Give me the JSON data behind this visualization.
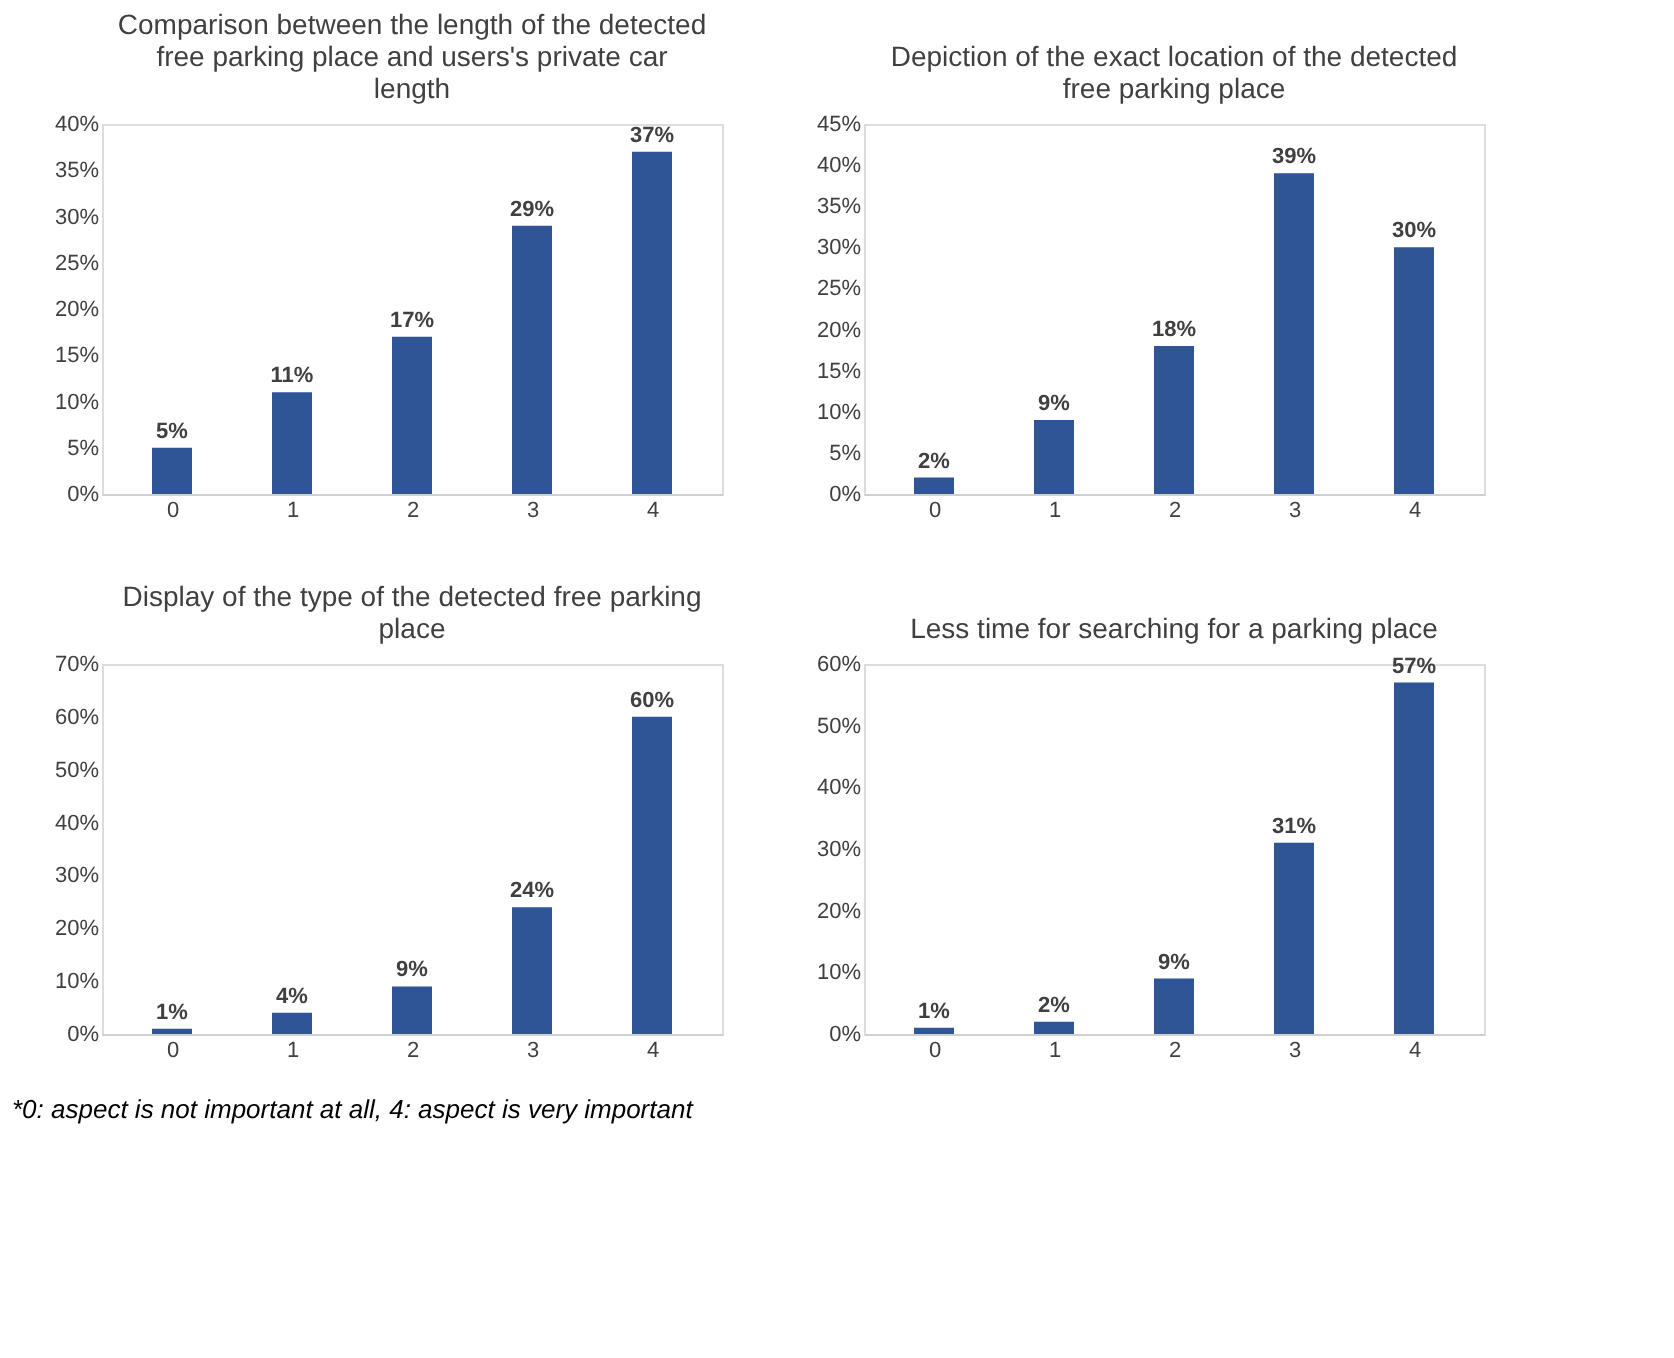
{
  "chart_data": [
    {
      "type": "bar",
      "title": "Comparison between the length of the detected free parking place and users's private car length",
      "categories": [
        "0",
        "1",
        "2",
        "3",
        "4"
      ],
      "values": [
        5,
        11,
        17,
        29,
        37
      ],
      "value_labels": [
        "5%",
        "11%",
        "17%",
        "29%",
        "37%"
      ],
      "color": "#2f5597",
      "ylim": [
        0,
        40
      ],
      "yticks": [
        {
          "value": 0,
          "label": "0%"
        },
        {
          "value": 5,
          "label": "5%"
        },
        {
          "value": 10,
          "label": "10%"
        },
        {
          "value": 15,
          "label": "15%"
        },
        {
          "value": 20,
          "label": "20%"
        },
        {
          "value": 25,
          "label": "25%"
        },
        {
          "value": 30,
          "label": "30%"
        },
        {
          "value": 35,
          "label": "35%"
        },
        {
          "value": 40,
          "label": "40%"
        }
      ],
      "grid": false
    },
    {
      "type": "bar",
      "title": "Depiction of the exact location of the detected free parking place",
      "categories": [
        "0",
        "1",
        "2",
        "3",
        "4"
      ],
      "values": [
        2,
        9,
        18,
        39,
        30
      ],
      "value_labels": [
        "2%",
        "9%",
        "18%",
        "39%",
        "30%"
      ],
      "color": "#2f5597",
      "ylim": [
        0,
        45
      ],
      "yticks": [
        {
          "value": 0,
          "label": "0%"
        },
        {
          "value": 5,
          "label": "5%"
        },
        {
          "value": 10,
          "label": "10%"
        },
        {
          "value": 15,
          "label": "15%"
        },
        {
          "value": 20,
          "label": "20%"
        },
        {
          "value": 25,
          "label": "25%"
        },
        {
          "value": 30,
          "label": "30%"
        },
        {
          "value": 35,
          "label": "35%"
        },
        {
          "value": 40,
          "label": "40%"
        },
        {
          "value": 45,
          "label": "45%"
        }
      ],
      "grid": false
    },
    {
      "type": "bar",
      "title": "Display of the type of the detected free parking place",
      "categories": [
        "0",
        "1",
        "2",
        "3",
        "4"
      ],
      "values": [
        1,
        4,
        9,
        24,
        60
      ],
      "value_labels": [
        "1%",
        "4%",
        "9%",
        "24%",
        "60%"
      ],
      "color": "#2f5597",
      "ylim": [
        0,
        70
      ],
      "yticks": [
        {
          "value": 0,
          "label": "0%"
        },
        {
          "value": 10,
          "label": "10%"
        },
        {
          "value": 20,
          "label": "20%"
        },
        {
          "value": 30,
          "label": "30%"
        },
        {
          "value": 40,
          "label": "40%"
        },
        {
          "value": 50,
          "label": "50%"
        },
        {
          "value": 60,
          "label": "60%"
        },
        {
          "value": 70,
          "label": "70%"
        }
      ],
      "grid": false,
      "annotations": [
        "*0: aspect is not important at all, 4: aspect is very important"
      ]
    },
    {
      "type": "bar",
      "title": "Less time for searching for a parking place",
      "categories": [
        "0",
        "1",
        "2",
        "3",
        "4"
      ],
      "values": [
        1,
        2,
        9,
        31,
        57
      ],
      "value_labels": [
        "1%",
        "2%",
        "9%",
        "31%",
        "57%"
      ],
      "color": "#2f5597",
      "ylim": [
        0,
        60
      ],
      "yticks": [
        {
          "value": 0,
          "label": "0%"
        },
        {
          "value": 10,
          "label": "10%"
        },
        {
          "value": 20,
          "label": "20%"
        },
        {
          "value": 30,
          "label": "30%"
        },
        {
          "value": 40,
          "label": "40%"
        },
        {
          "value": 50,
          "label": "50%"
        },
        {
          "value": 60,
          "label": "60%"
        }
      ],
      "grid": false
    }
  ]
}
